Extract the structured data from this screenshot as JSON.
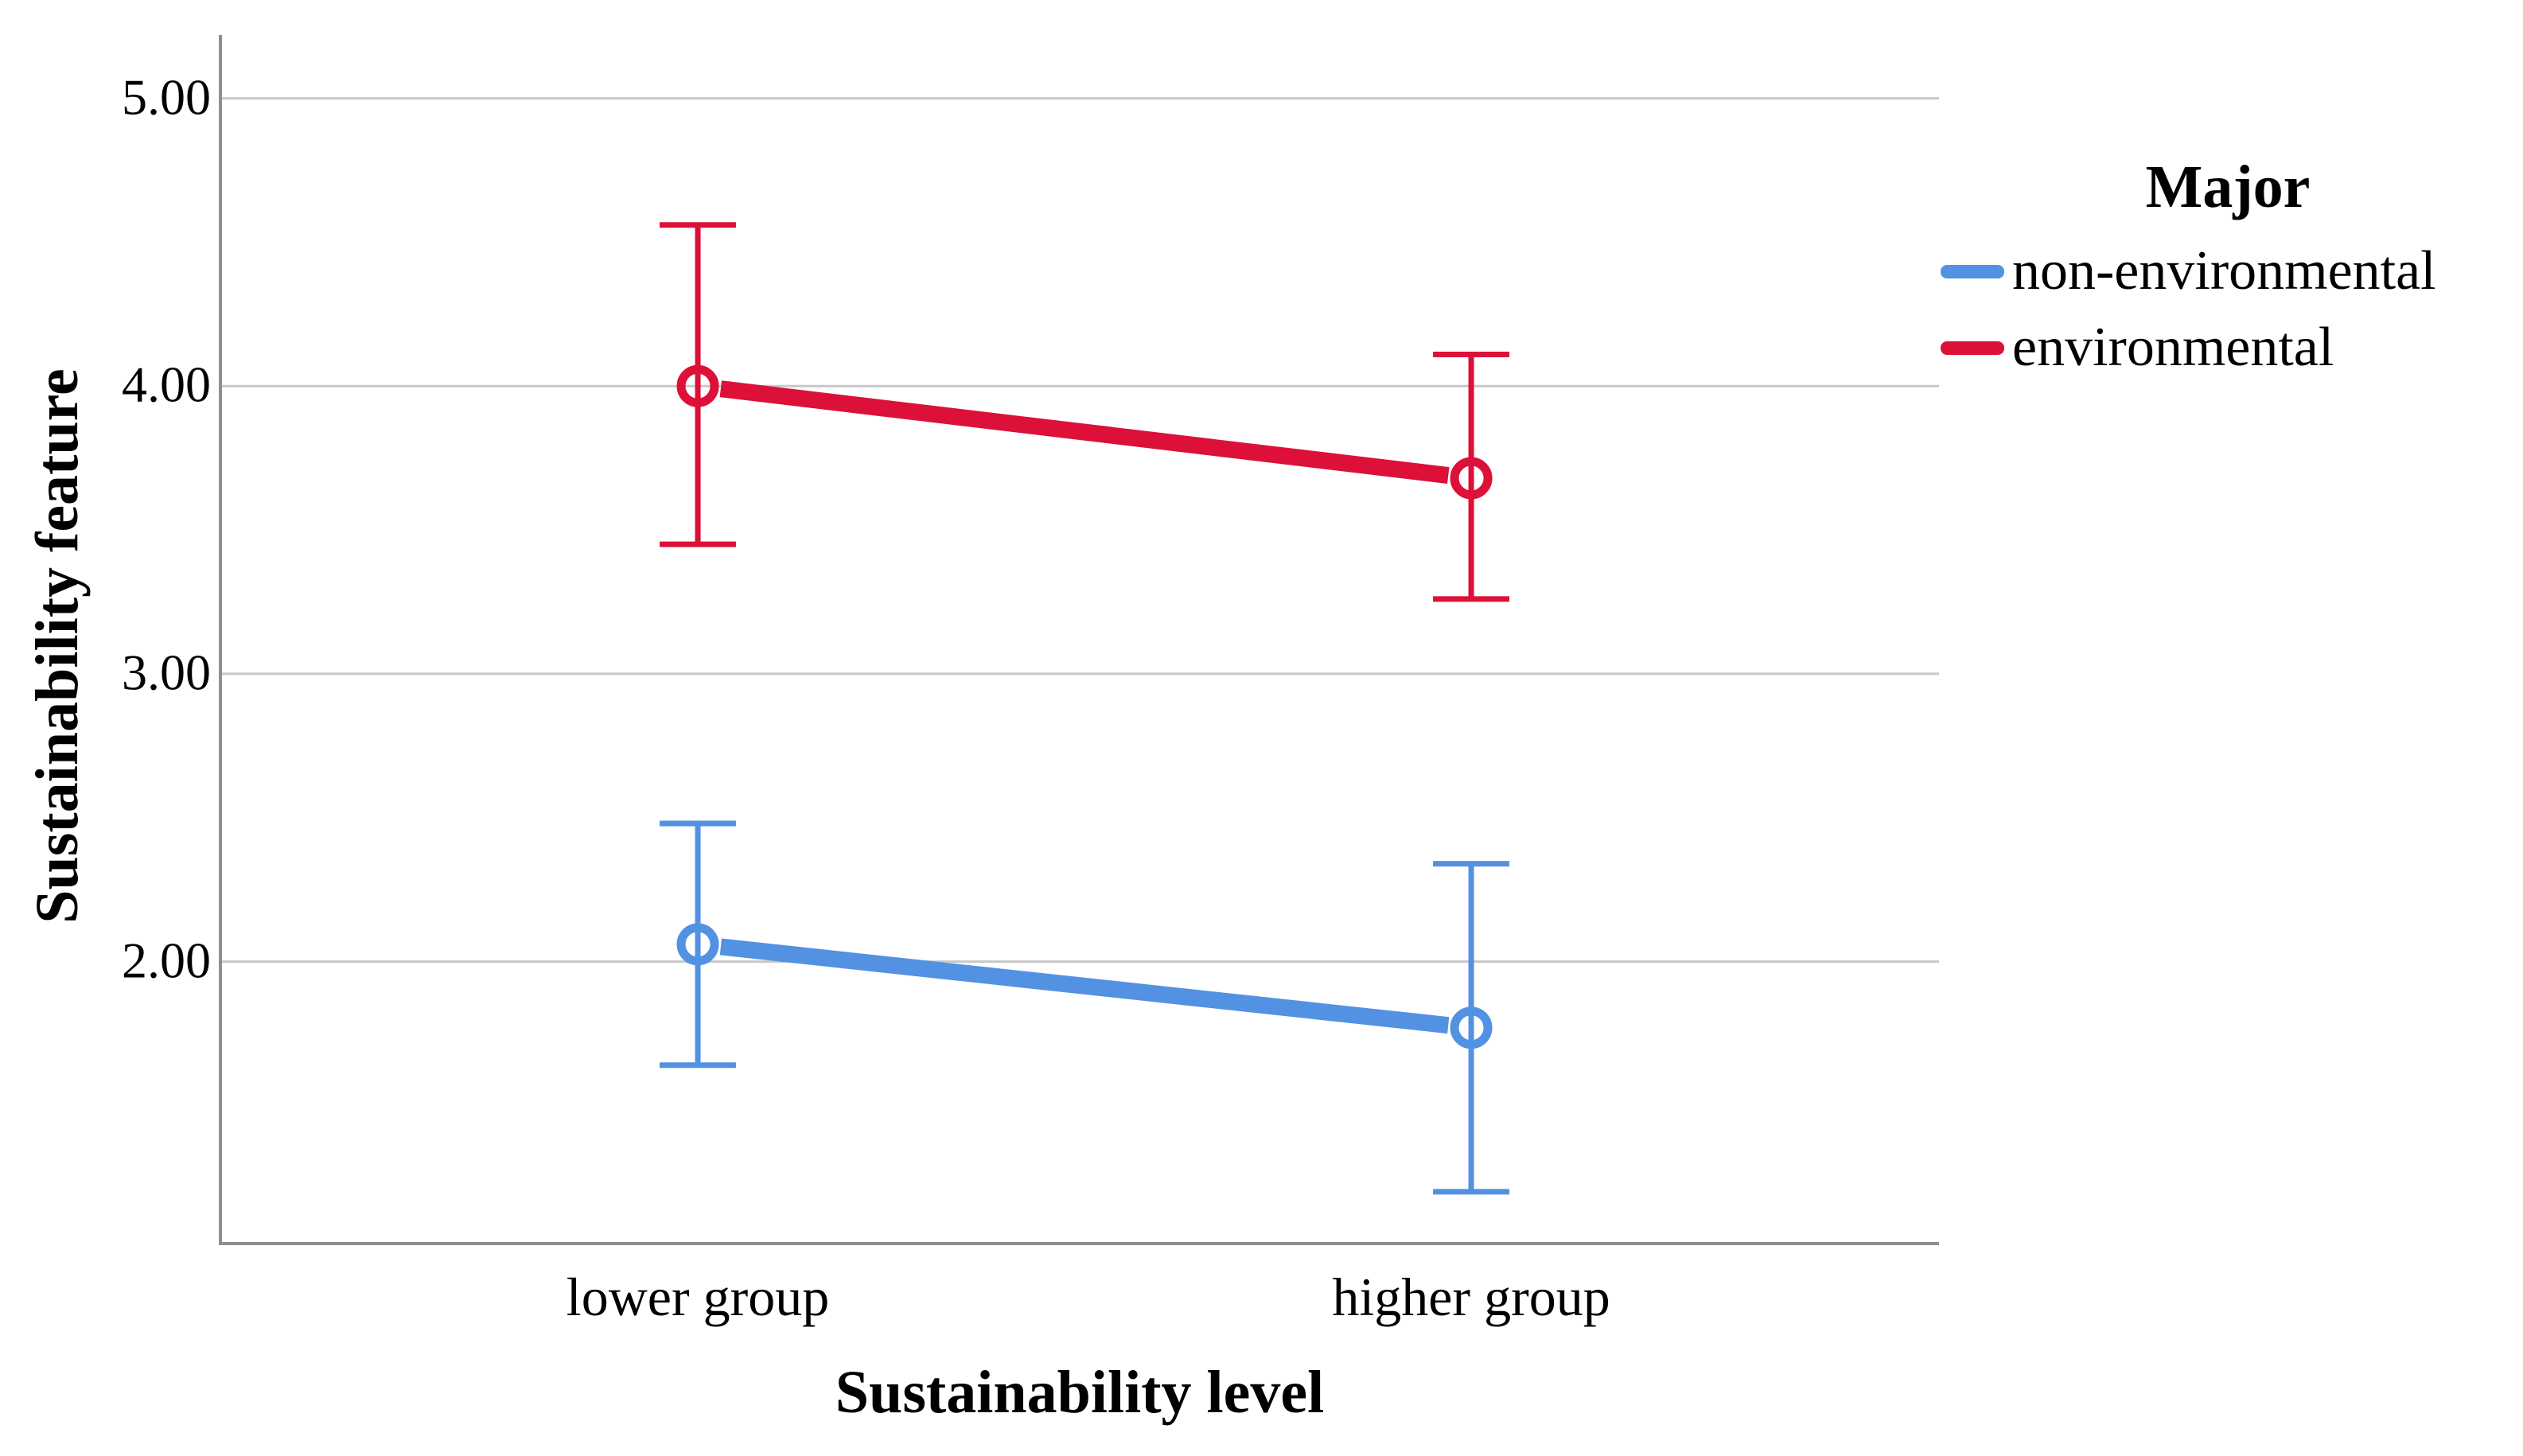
{
  "chart_data": {
    "type": "line",
    "title": "",
    "categories": [
      "lower group",
      "higher group"
    ],
    "series": [
      {
        "name": "non-environmental",
        "color": "#5391E2",
        "values": [
          2.06,
          1.77
        ],
        "ci_low": [
          1.64,
          1.2
        ],
        "ci_high": [
          2.48,
          2.34
        ]
      },
      {
        "name": "environmental",
        "color": "#DC1038",
        "values": [
          4.0,
          3.68
        ],
        "ci_low": [
          3.45,
          3.26
        ],
        "ci_high": [
          4.56,
          4.11
        ]
      }
    ],
    "xlabel": "Sustainability level",
    "ylabel": "Sustainability feature",
    "y_ticks": [
      {
        "value": 5,
        "label": "5.00"
      },
      {
        "value": 4,
        "label": "4.00"
      },
      {
        "value": 3,
        "label": "3.00"
      },
      {
        "value": 2,
        "label": "2.00"
      }
    ],
    "ylim": [
      1.02,
      5.22
    ],
    "grid": true,
    "marker": "open-circle",
    "error_bar_style": "caps",
    "legend": {
      "title": "Major",
      "position": "right"
    },
    "colors": {
      "gridline": "#C8C8C8",
      "axis": "#8E8E8E",
      "text": "#000000",
      "background": "#FFFFFF"
    }
  }
}
